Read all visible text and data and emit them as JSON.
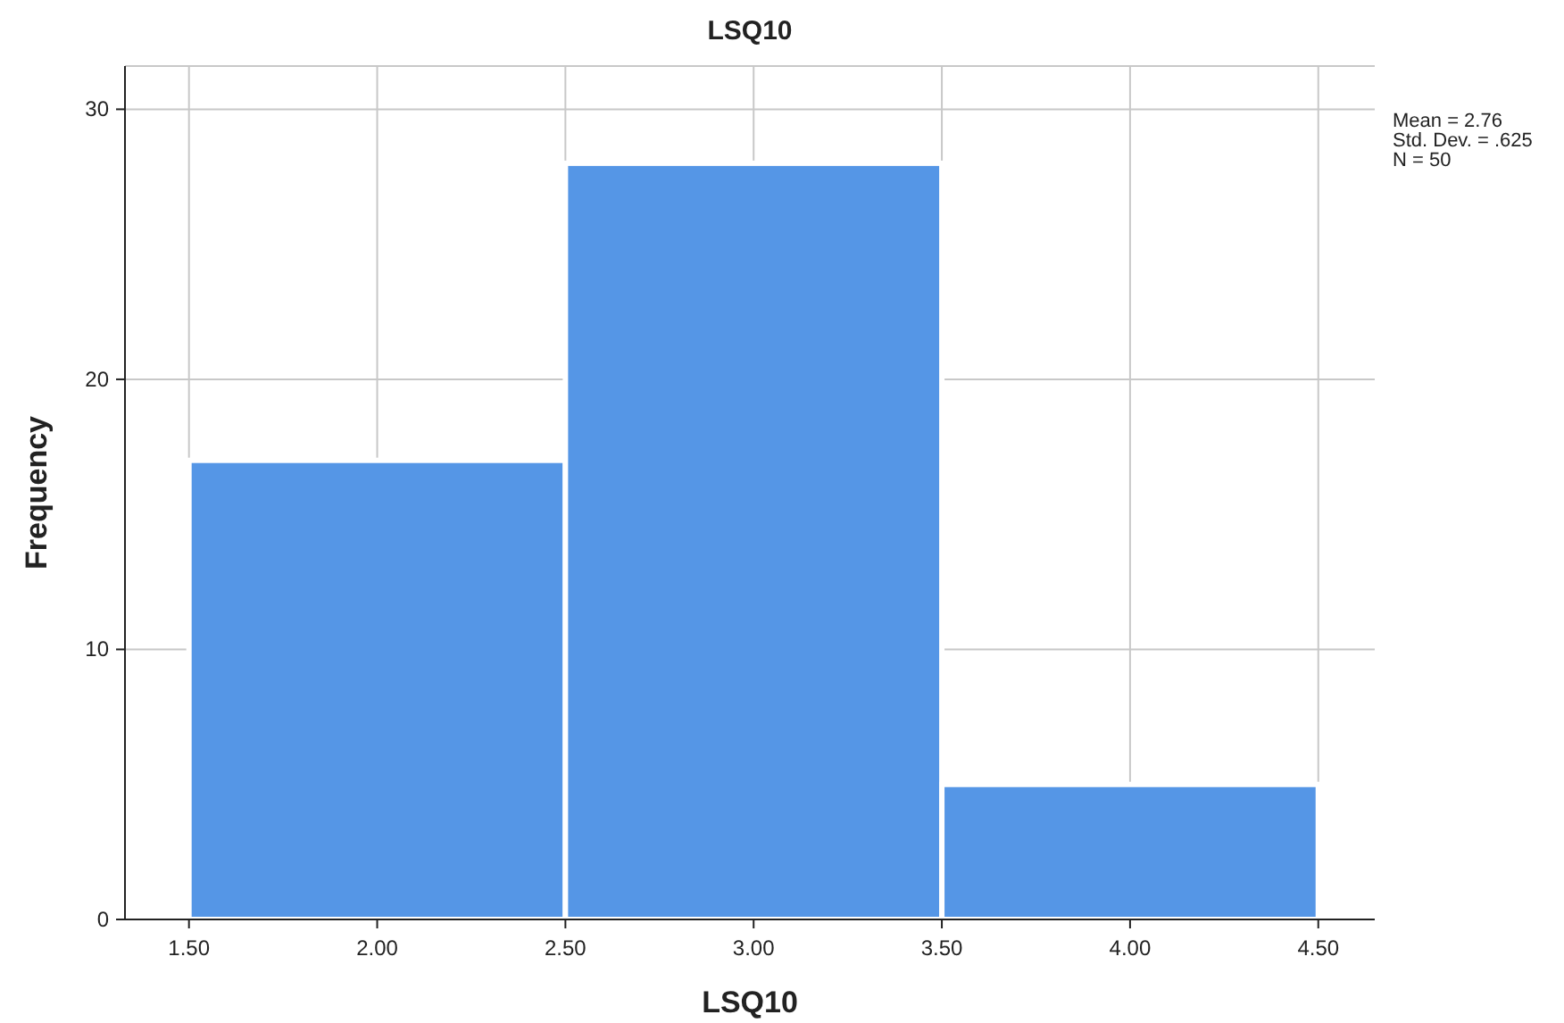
{
  "chart_data": {
    "type": "histogram",
    "title": "LSQ10",
    "xlabel": "LSQ10",
    "ylabel": "Frequency",
    "bins": [
      1.5,
      2.5,
      3.5,
      4.5
    ],
    "values": [
      17,
      28,
      5
    ],
    "color": "#5596e6",
    "xlim": [
      1.33,
      4.65
    ],
    "ylim": [
      0,
      31.6
    ],
    "xticks": [
      {
        "value": 1.5,
        "label": "1.50"
      },
      {
        "value": 2,
        "label": "2.00"
      },
      {
        "value": 2.5,
        "label": "2.50"
      },
      {
        "value": 3,
        "label": "3.00"
      },
      {
        "value": 3.5,
        "label": "3.50"
      },
      {
        "value": 4,
        "label": "4.00"
      },
      {
        "value": 4.5,
        "label": "4.50"
      }
    ],
    "yticks": [
      0,
      10,
      20,
      30
    ],
    "grid": true,
    "annotations": [
      "Mean = 2.76",
      "Std. Dev. = .625",
      "N = 50"
    ]
  }
}
